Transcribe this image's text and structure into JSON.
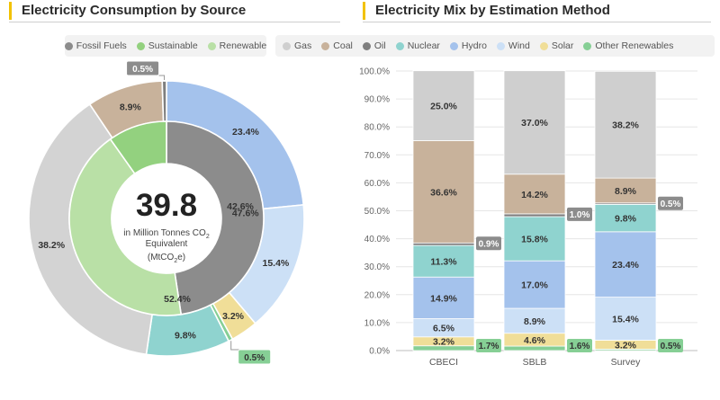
{
  "left_panel": {
    "title": "Electricity Consumption by Source",
    "center_value": "39.8",
    "center_caption_line1": "in Million Tonnes CO",
    "center_caption_sub": "2",
    "center_caption_line2": "Equivalent",
    "center_caption_line3_pre": "(MtCO",
    "center_caption_line3_sub": "2",
    "center_caption_line3_post": "e)",
    "legend": [
      {
        "name": "Fossil Fuels",
        "color": "#8c8c8c"
      },
      {
        "name": "Sustainable",
        "color": "#93d17f"
      },
      {
        "name": "Renewable",
        "color": "#b9e0a6"
      }
    ]
  },
  "right_panel": {
    "title": "Electricity Mix by Estimation Method",
    "legend": [
      {
        "name": "Gas",
        "color": "#cfcfcf"
      },
      {
        "name": "Coal",
        "color": "#c8b29b"
      },
      {
        "name": "Oil",
        "color": "#7f7f7f"
      },
      {
        "name": "Nuclear",
        "color": "#8fd3cf"
      },
      {
        "name": "Hydro",
        "color": "#a4c2ec"
      },
      {
        "name": "Wind",
        "color": "#cce0f6"
      },
      {
        "name": "Solar",
        "color": "#f0de98"
      },
      {
        "name": "Other Renewables",
        "color": "#86cf95"
      }
    ]
  },
  "chart_data": [
    {
      "type": "pie",
      "title": "Electricity Consumption by Source",
      "inner_ring": [
        {
          "category": "Fossil Fuels",
          "value": 47.6,
          "label": "47.6%",
          "color": "#8c8c8c"
        },
        {
          "category": "Renewable",
          "value": 42.6,
          "label": "42.6%",
          "color": "#b9e0a6"
        },
        {
          "category": "Sustainable",
          "value": 9.8,
          "label": "52.4%",
          "color": "#93d17f"
        }
      ],
      "outer_ring": [
        {
          "category": "Hydro",
          "value": 23.4,
          "label": "23.4%",
          "color": "#a4c2ec"
        },
        {
          "category": "Wind",
          "value": 15.4,
          "label": "15.4%",
          "color": "#cce0f6"
        },
        {
          "category": "Solar",
          "value": 3.2,
          "label": "3.2%",
          "color": "#f0de98"
        },
        {
          "category": "Other Renewables",
          "value": 0.5,
          "label": "0.5%",
          "color": "#86cf95"
        },
        {
          "category": "Nuclear",
          "value": 9.8,
          "label": "9.8%",
          "color": "#8fd3cf"
        },
        {
          "category": "Gas",
          "value": 38.2,
          "label": "38.2%",
          "color": "#d3d3d3"
        },
        {
          "category": "Coal",
          "value": 8.9,
          "label": "8.9%",
          "color": "#c8b29b"
        },
        {
          "category": "Oil",
          "value": 0.5,
          "label": "0.5%",
          "color": "#7f7f7f"
        }
      ]
    },
    {
      "type": "bar",
      "stacked": true,
      "title": "Electricity Mix by Estimation Method",
      "categories": [
        "CBECI",
        "SBLB",
        "Survey"
      ],
      "y_ticks": [
        "0.0%",
        "10.0%",
        "20.0%",
        "30.0%",
        "40.0%",
        "50.0%",
        "60.0%",
        "70.0%",
        "80.0%",
        "90.0%",
        "100.0%"
      ],
      "ylim": [
        0,
        100
      ],
      "grid": true,
      "series": [
        {
          "name": "Other Renewables",
          "color": "#86cf95",
          "values": [
            1.7,
            1.6,
            0.5
          ],
          "labels": [
            "1.7%",
            "1.6%",
            "0.5%"
          ],
          "callout": true
        },
        {
          "name": "Solar",
          "color": "#f0de98",
          "values": [
            3.2,
            4.6,
            3.2
          ],
          "labels": [
            "3.2%",
            "4.6%",
            "3.2%"
          ]
        },
        {
          "name": "Wind",
          "color": "#cce0f6",
          "values": [
            6.5,
            8.9,
            15.4
          ],
          "labels": [
            "6.5%",
            "8.9%",
            "15.4%"
          ]
        },
        {
          "name": "Hydro",
          "color": "#a4c2ec",
          "values": [
            14.9,
            17.0,
            23.4
          ],
          "labels": [
            "14.9%",
            "17.0%",
            "23.4%"
          ]
        },
        {
          "name": "Nuclear",
          "color": "#8fd3cf",
          "values": [
            11.3,
            15.8,
            9.8
          ],
          "labels": [
            "11.3%",
            "15.8%",
            "9.8%"
          ]
        },
        {
          "name": "Oil",
          "color": "#7f7f7f",
          "values": [
            0.9,
            1.0,
            0.5
          ],
          "labels": [
            "0.9%",
            "1.0%",
            "0.5%"
          ],
          "callout": true
        },
        {
          "name": "Coal",
          "color": "#c8b29b",
          "values": [
            36.6,
            14.2,
            8.9
          ],
          "labels": [
            "36.6%",
            "14.2%",
            "8.9%"
          ]
        },
        {
          "name": "Gas",
          "color": "#cfcfcf",
          "values": [
            25.0,
            37.0,
            38.2
          ],
          "labels": [
            "25.0%",
            "37.0%",
            "38.2%"
          ]
        }
      ]
    }
  ]
}
